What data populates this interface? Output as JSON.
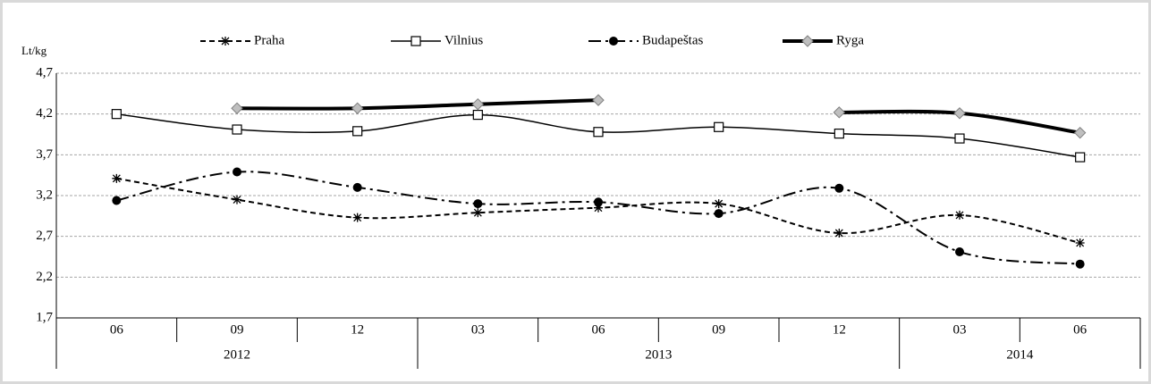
{
  "chart_data": {
    "type": "line",
    "y_label": "Lt/kg",
    "categories": [
      "06",
      "09",
      "12",
      "03",
      "06",
      "09",
      "12",
      "03",
      "06"
    ],
    "groups": [
      {
        "label": "2012",
        "span": 3
      },
      {
        "label": "2013",
        "span": 4
      },
      {
        "label": "2014",
        "span": 2
      }
    ],
    "series": [
      {
        "name": "Praha",
        "color": "#000000",
        "values": [
          3.41,
          3.15,
          2.93,
          2.99,
          3.05,
          3.1,
          2.74,
          2.96,
          2.62
        ]
      },
      {
        "name": "Vilnius",
        "color": "#000000",
        "values": [
          4.2,
          4.01,
          3.99,
          4.19,
          3.98,
          4.04,
          3.96,
          3.9,
          3.67
        ]
      },
      {
        "name": "Budapeštas",
        "color": "#000000",
        "values": [
          3.14,
          3.49,
          3.3,
          3.1,
          3.12,
          2.98,
          3.29,
          2.51,
          2.36
        ]
      },
      {
        "name": "Ryga",
        "color": "#000000",
        "values": [
          null,
          4.27,
          4.27,
          4.32,
          4.37,
          null,
          4.22,
          4.21,
          3.97
        ]
      }
    ],
    "ylim": [
      1.7,
      4.7
    ],
    "yticks": [
      {
        "value": 1.7,
        "label": "1,7"
      },
      {
        "value": 2.2,
        "label": "2,2"
      },
      {
        "value": 2.7,
        "label": "2,7"
      },
      {
        "value": 3.2,
        "label": "3,2"
      },
      {
        "value": 3.7,
        "label": "3,7"
      },
      {
        "value": 4.2,
        "label": "4,2"
      },
      {
        "value": 4.7,
        "label": "4,7"
      }
    ],
    "grid": true
  }
}
